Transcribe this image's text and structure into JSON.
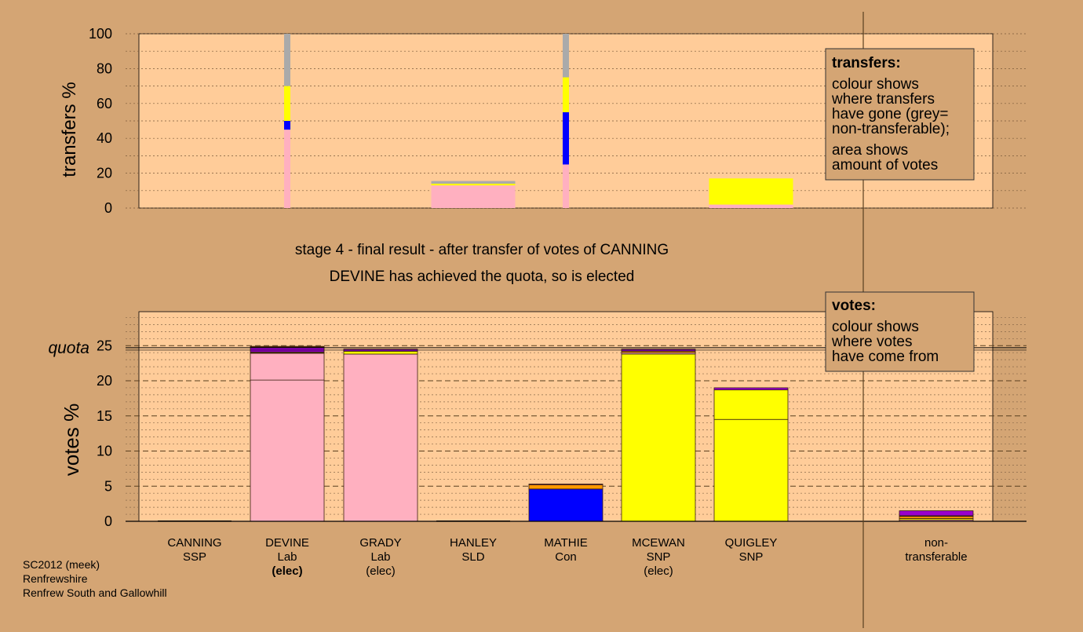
{
  "colors": {
    "background": "#d4a574",
    "panel": "#ffcc99",
    "lab": "#ffb0c0",
    "snp": "#ffff00",
    "con": "#0000ff",
    "ssp": "#ff9900",
    "sld": "#ff9900",
    "other": "#9900cc",
    "nontransferable": "#aaaaaa"
  },
  "chart_data": [
    {
      "type": "bar",
      "subtype": "stacked",
      "ylabel": "transfers %",
      "ylim": [
        0,
        100
      ],
      "yticks": [
        "0",
        "20",
        "40",
        "60",
        "80",
        "100"
      ],
      "note": {
        "heading": "transfers:",
        "lines": [
          "colour shows",
          "where transfers",
          "have gone (grey=",
          "non-transferable);",
          "area shows",
          "amount of votes"
        ]
      },
      "bars": [
        {
          "position": 1,
          "width": "narrow",
          "segments": [
            {
              "color": "#ffb0c0",
              "value": 45
            },
            {
              "color": "#0000ff",
              "value": 5
            },
            {
              "color": "#ffff00",
              "value": 20
            },
            {
              "color": "#aaaaaa",
              "value": 30
            }
          ]
        },
        {
          "position": 3,
          "width": "wide",
          "segments": [
            {
              "color": "#ffb0c0",
              "value": 13
            },
            {
              "color": "#ffff00",
              "value": 1
            },
            {
              "color": "#aaaaaa",
              "value": 1.5
            }
          ]
        },
        {
          "position": 4,
          "width": "narrow",
          "segments": [
            {
              "color": "#ffb0c0",
              "value": 25
            },
            {
              "color": "#0000ff",
              "value": 30
            },
            {
              "color": "#ffff00",
              "value": 20
            },
            {
              "color": "#aaaaaa",
              "value": 25
            }
          ]
        },
        {
          "position": 6,
          "width": "wide",
          "segments": [
            {
              "color": "#ffb0c0",
              "value": 2
            },
            {
              "color": "#ffff00",
              "value": 15
            }
          ]
        }
      ]
    },
    {
      "type": "bar",
      "subtype": "stacked",
      "ylabel": "votes %",
      "ylim": [
        0,
        25
      ],
      "yticks": [
        "0",
        "5",
        "10",
        "15",
        "20",
        "25"
      ],
      "quota": 24.7,
      "quota_label": "quota",
      "note": {
        "heading": "votes:",
        "lines": [
          "colour shows",
          "where votes",
          "have come from"
        ]
      },
      "categories": [
        {
          "name": "CANNING",
          "party": "SSP",
          "status": ""
        },
        {
          "name": "DEVINE",
          "party": "Lab",
          "status": "(elec)",
          "status_bold": true
        },
        {
          "name": "GRADY",
          "party": "Lab",
          "status": "(elec)"
        },
        {
          "name": "HANLEY",
          "party": "SLD",
          "status": ""
        },
        {
          "name": "MATHIE",
          "party": "Con",
          "status": ""
        },
        {
          "name": "MCEWAN",
          "party": "SNP",
          "status": "(elec)"
        },
        {
          "name": "QUIGLEY",
          "party": "SNP",
          "status": ""
        },
        {
          "name": "",
          "party": "",
          "status": ""
        },
        {
          "name": "non-",
          "party": "transferable",
          "status": ""
        }
      ],
      "bars": [
        {
          "position": 0,
          "segments": []
        },
        {
          "position": 1,
          "segments": [
            {
              "color": "#ffb0c0",
              "value": 20.1
            },
            {
              "color": "#ffb0c0",
              "value": 3.8
            },
            {
              "color": "#ffff00",
              "value": 0.1
            },
            {
              "color": "#0000ff",
              "value": 0.1
            },
            {
              "color": "#9900cc",
              "value": 0.7
            },
            {
              "color": "#ff9900",
              "value": 0.1
            }
          ]
        },
        {
          "position": 2,
          "segments": [
            {
              "color": "#ffb0c0",
              "value": 23.8
            },
            {
              "color": "#ffff00",
              "value": 0.4
            },
            {
              "color": "#9900cc",
              "value": 0.3
            }
          ]
        },
        {
          "position": 3,
          "segments": []
        },
        {
          "position": 4,
          "segments": [
            {
              "color": "#0000ff",
              "value": 4.6
            },
            {
              "color": "#ff9900",
              "value": 0.6
            },
            {
              "color": "#9900cc",
              "value": 0.1
            }
          ]
        },
        {
          "position": 5,
          "segments": [
            {
              "color": "#ffff00",
              "value": 23.8
            },
            {
              "color": "#ffb0c0",
              "value": 0.2
            },
            {
              "color": "#ff9900",
              "value": 0.2
            },
            {
              "color": "#9900cc",
              "value": 0.3
            }
          ]
        },
        {
          "position": 6,
          "segments": [
            {
              "color": "#ffff00",
              "value": 14.5
            },
            {
              "color": "#ffff00",
              "value": 4.2
            },
            {
              "color": "#9900cc",
              "value": 0.3
            }
          ]
        },
        {
          "position": 8,
          "segments": [
            {
              "color": "#ffb0c0",
              "value": 0.2
            },
            {
              "color": "#ffff00",
              "value": 0.2
            },
            {
              "color": "#ff9900",
              "value": 0.3
            },
            {
              "color": "#0000ff",
              "value": 0.1
            },
            {
              "color": "#9900cc",
              "value": 0.7
            }
          ]
        }
      ]
    }
  ],
  "caption": {
    "stage": "stage 4 - final result - after transfer of votes of CANNING",
    "result": "DEVINE has achieved the quota, so is elected"
  },
  "footer": [
    "SC2012 (meek)",
    "Renfrewshire",
    "Renfrew South and Gallowhill"
  ]
}
